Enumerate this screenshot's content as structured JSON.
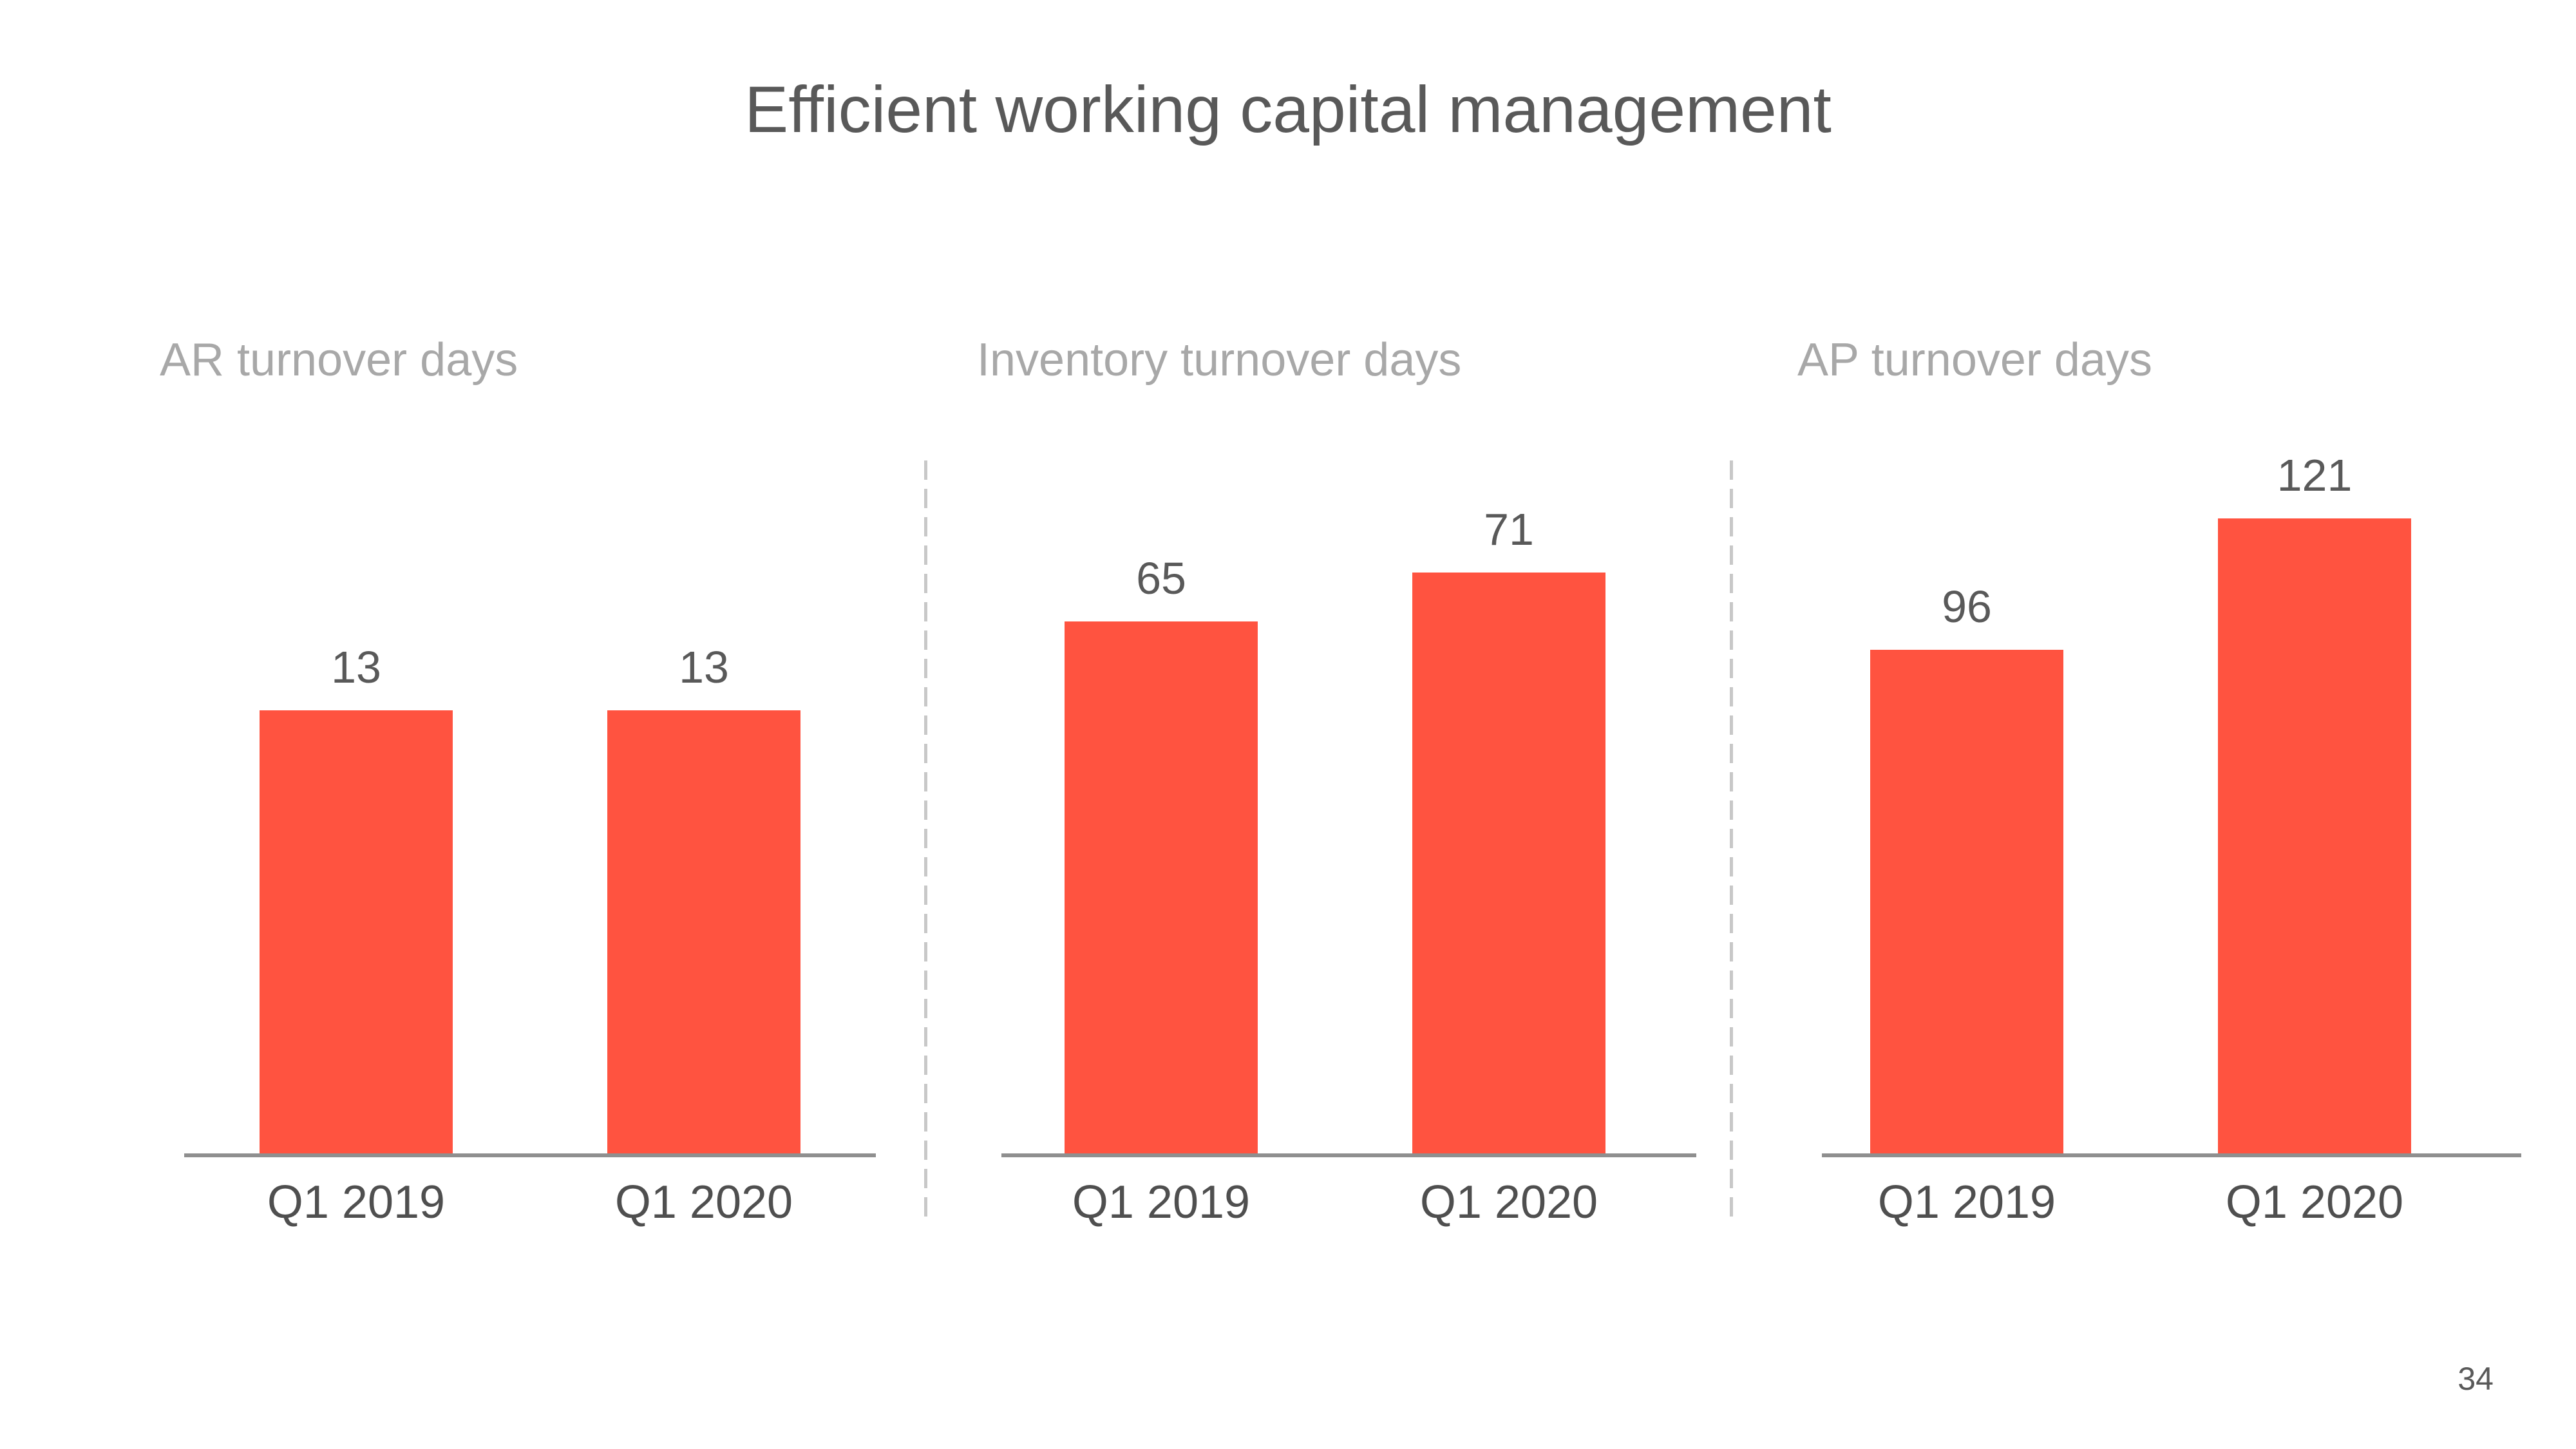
{
  "slide": {
    "title": "Efficient working capital management",
    "page_number": "34"
  },
  "theme": {
    "background": "#FFFFFF",
    "bar_color": "#FF5340",
    "title_color": "#595959",
    "section_label_color": "#A8A8A8",
    "value_label_color": "#595959",
    "category_label_color": "#4F4F4F",
    "axis_color": "#8F8F8F",
    "divider_color": "#C8C8C8"
  },
  "chart_data": [
    {
      "type": "bar",
      "title": "AR turnover days",
      "categories": [
        "Q1 2019",
        "Q1 2020"
      ],
      "values": [
        13,
        13
      ],
      "ylim": [
        0,
        24
      ],
      "xlabel": "",
      "ylabel": "",
      "grid": false,
      "legend": false,
      "value_labels": true
    },
    {
      "type": "bar",
      "title": "Inventory turnover days",
      "categories": [
        "Q1 2019",
        "Q1 2020"
      ],
      "values": [
        65,
        71
      ],
      "ylim": [
        0,
        100
      ],
      "xlabel": "",
      "ylabel": "",
      "grid": false,
      "legend": false,
      "value_labels": true
    },
    {
      "type": "bar",
      "title": "AP turnover days",
      "categories": [
        "Q1 2019",
        "Q1 2020"
      ],
      "values": [
        96,
        121
      ],
      "ylim": [
        0,
        156
      ],
      "xlabel": "",
      "ylabel": "",
      "grid": false,
      "legend": false,
      "value_labels": true
    }
  ]
}
